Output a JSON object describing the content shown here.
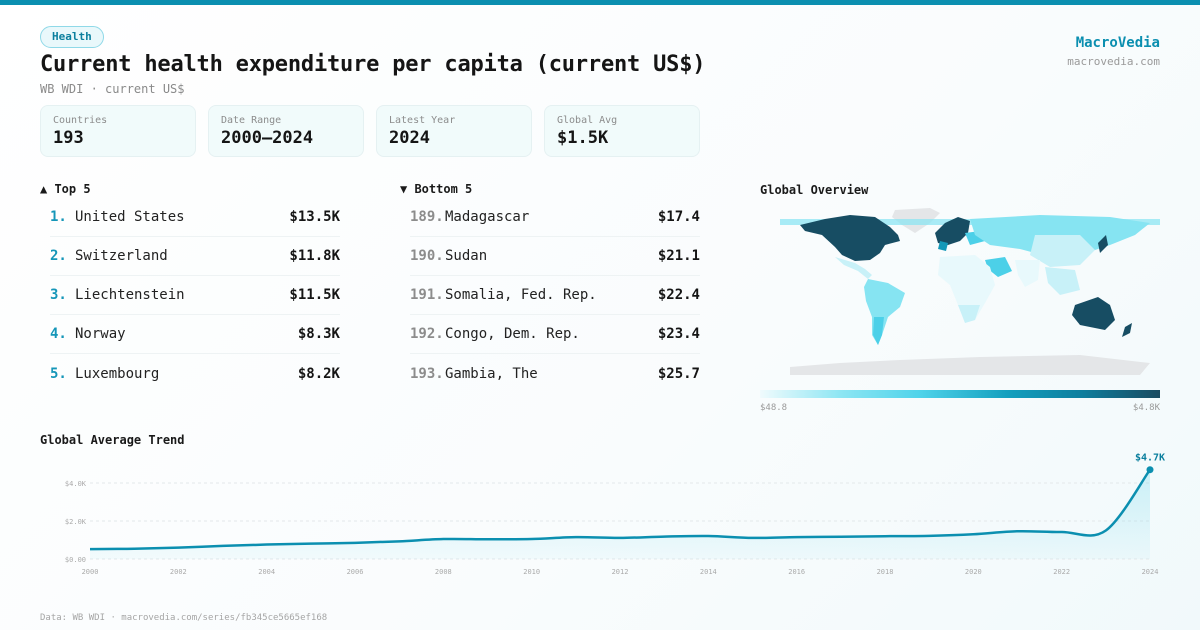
{
  "header": {
    "category_badge": "Health",
    "title": "Current health expenditure per capita (current US$)",
    "subtitle": "WB WDI · current US$",
    "brand_name": "MacroVedia",
    "brand_url": "macrovedia.com"
  },
  "stats": [
    {
      "label": "Countries",
      "value": "193"
    },
    {
      "label": "Date Range",
      "value": "2000–2024"
    },
    {
      "label": "Latest Year",
      "value": "2024"
    },
    {
      "label": "Global Avg",
      "value": "$1.5K"
    }
  ],
  "top5": {
    "heading": "▲ Top 5",
    "items": [
      {
        "rank": "1.",
        "name": "United States",
        "value": "$13.5K"
      },
      {
        "rank": "2.",
        "name": "Switzerland",
        "value": "$11.8K"
      },
      {
        "rank": "3.",
        "name": "Liechtenstein",
        "value": "$11.5K"
      },
      {
        "rank": "4.",
        "name": "Norway",
        "value": "$8.3K"
      },
      {
        "rank": "5.",
        "name": "Luxembourg",
        "value": "$8.2K"
      }
    ]
  },
  "bottom5": {
    "heading": "▼ Bottom 5",
    "items": [
      {
        "rank": "189.",
        "name": "Madagascar",
        "value": "$17.4"
      },
      {
        "rank": "190.",
        "name": "Sudan",
        "value": "$21.1"
      },
      {
        "rank": "191.",
        "name": "Somalia, Fed. Rep.",
        "value": "$22.4"
      },
      {
        "rank": "192.",
        "name": "Congo, Dem. Rep.",
        "value": "$23.4"
      },
      {
        "rank": "193.",
        "name": "Gambia, The",
        "value": "$25.7"
      }
    ]
  },
  "map": {
    "title": "Global Overview",
    "legend_min": "$48.8",
    "legend_max": "$4.8K",
    "colors": {
      "no_data": "#e4e6e8",
      "low": "#e8f9fc",
      "mid_low": "#86e4f2",
      "mid": "#4cd0e8",
      "mid_high": "#1398b8",
      "high": "#174d63"
    }
  },
  "trend": {
    "title": "Global Average Trend",
    "end_label": "$4.7K",
    "line_color": "#0b8fb0"
  },
  "footer": {
    "source": "Data: WB WDI · macrovedia.com/series/fb345ce5665ef168"
  },
  "chart_data": {
    "type": "line",
    "title": "Global Average Trend",
    "xlabel": "",
    "ylabel": "",
    "x": [
      2000,
      2001,
      2002,
      2003,
      2004,
      2005,
      2006,
      2007,
      2008,
      2009,
      2010,
      2011,
      2012,
      2013,
      2014,
      2015,
      2016,
      2017,
      2018,
      2019,
      2020,
      2021,
      2022,
      2023,
      2024
    ],
    "series": [
      {
        "name": "Global Average (current US$)",
        "values": [
          520,
          540,
          600,
          690,
          760,
          810,
          850,
          930,
          1050,
          1040,
          1050,
          1150,
          1110,
          1180,
          1210,
          1110,
          1150,
          1170,
          1200,
          1220,
          1300,
          1460,
          1420,
          1500,
          4700
        ]
      }
    ],
    "x_tick_labels": [
      "2000",
      "2002",
      "2004",
      "2006",
      "2008",
      "2010",
      "2012",
      "2014",
      "2016",
      "2018",
      "2020",
      "2022",
      "2024"
    ],
    "y_tick_labels": [
      "$0.00",
      "$2.0K",
      "$4.0K"
    ],
    "ylim": [
      0,
      5000
    ],
    "grid": true,
    "annotations": [
      {
        "x": 2024,
        "label": "$4.7K"
      }
    ]
  }
}
